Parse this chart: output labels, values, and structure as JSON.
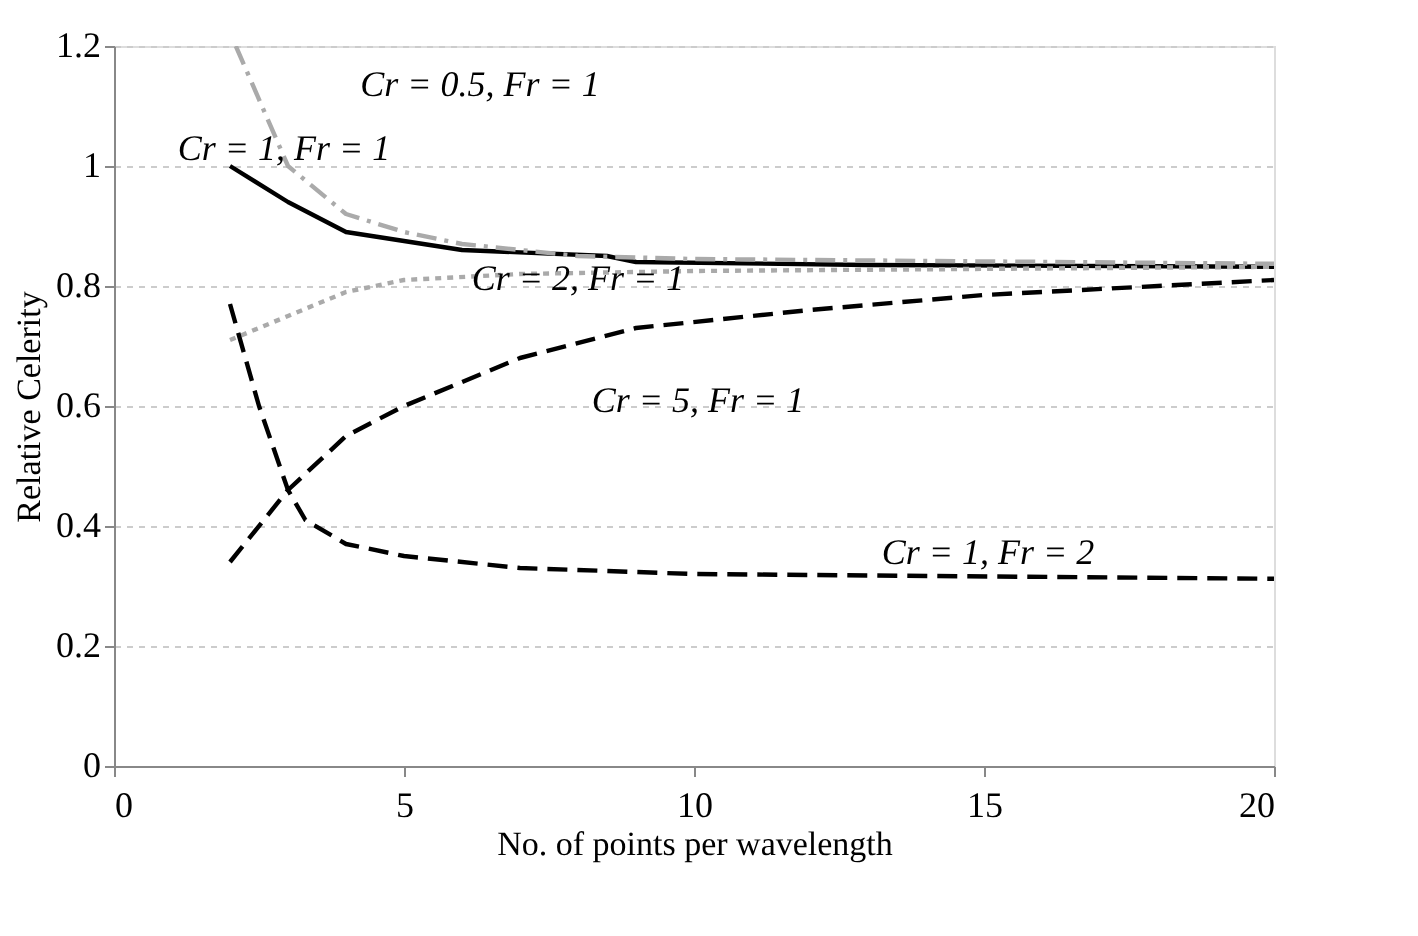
{
  "chart_data": {
    "type": "line",
    "xlabel": "No. of points per wavelength",
    "ylabel": "Relative Celerity",
    "xlim": [
      0,
      20
    ],
    "xticks": [
      0,
      5,
      10,
      15,
      20
    ],
    "ylim": [
      0,
      1.2
    ],
    "yticks": [
      0,
      0.2,
      0.4,
      0.6,
      0.8,
      1,
      1.2
    ],
    "grid": "y",
    "marker": "none",
    "series": [
      {
        "color": "#000000",
        "line_style": "solid",
        "x": [
          2,
          3,
          4,
          6,
          8.5,
          9,
          13,
          20
        ],
        "values": [
          1.0,
          0.94,
          0.89,
          0.86,
          0.85,
          0.84,
          0.835,
          0.832
        ]
      },
      {
        "color": "#aaaaaa",
        "line_style": "dashdot",
        "x": [
          2.1,
          3,
          4,
          5,
          6,
          8,
          10,
          20
        ],
        "values": [
          1.2,
          1.0,
          0.92,
          0.89,
          0.87,
          0.85,
          0.845,
          0.837
        ]
      },
      {
        "color": "#aaaaaa",
        "line_style": "dotted",
        "x": [
          2,
          3,
          4,
          5,
          7,
          10,
          20
        ],
        "values": [
          0.71,
          0.75,
          0.79,
          0.81,
          0.82,
          0.825,
          0.832
        ]
      },
      {
        "color": "#000000",
        "line_style": "dashed",
        "x": [
          2,
          3,
          4,
          5,
          7,
          9,
          12,
          15,
          18,
          20
        ],
        "values": [
          0.34,
          0.46,
          0.55,
          0.6,
          0.68,
          0.73,
          0.76,
          0.785,
          0.8,
          0.81
        ]
      },
      {
        "color": "#000000",
        "line_style": "dashed",
        "x": [
          2,
          2.5,
          3,
          3.3,
          4,
          5,
          7,
          10,
          20
        ],
        "values": [
          0.77,
          0.6,
          0.46,
          0.41,
          0.37,
          0.35,
          0.33,
          0.32,
          0.312
        ]
      }
    ],
    "annotations": [
      "Cr = 0.5, Fr = 1",
      "Cr = 1, Fr = 1",
      "Cr = 2, Fr = 1",
      "Cr = 5, Fr = 1",
      "Cr = 1, Fr = 2"
    ]
  }
}
